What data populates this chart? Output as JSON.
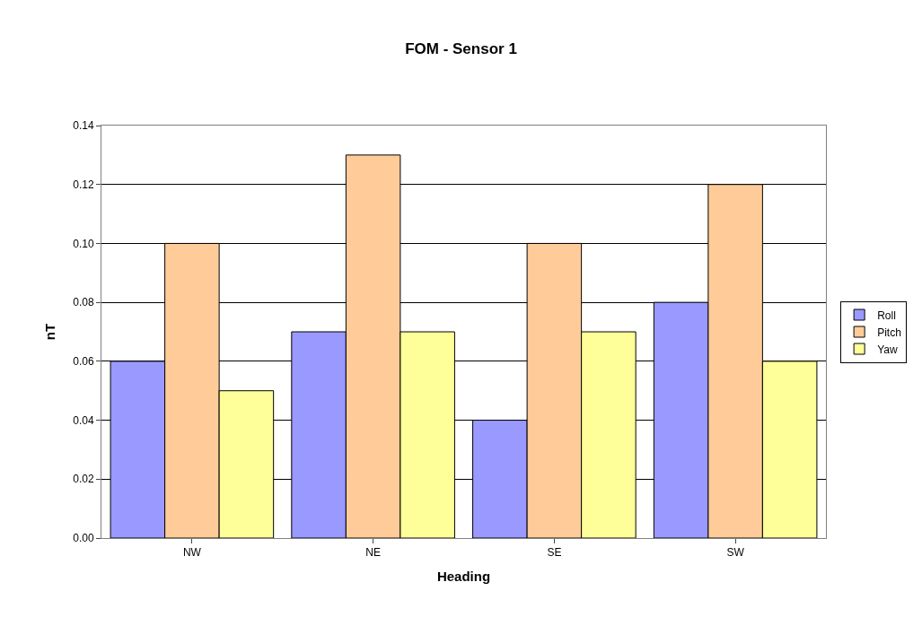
{
  "chart_data": {
    "type": "bar",
    "title": "FOM - Sensor 1",
    "xlabel": "Heading",
    "ylabel": "nT",
    "categories": [
      "NW",
      "NE",
      "SE",
      "SW"
    ],
    "series": [
      {
        "name": "Roll",
        "color": "#9999ff",
        "values": [
          0.06,
          0.07,
          0.04,
          0.08
        ]
      },
      {
        "name": "Pitch",
        "color": "#ffcc99",
        "values": [
          0.1,
          0.13,
          0.1,
          0.12
        ]
      },
      {
        "name": "Yaw",
        "color": "#ffff99",
        "values": [
          0.05,
          0.07,
          0.07,
          0.06
        ]
      }
    ],
    "ylim": [
      0,
      0.14
    ],
    "yticks": [
      {
        "value": 0,
        "label": "0.00"
      },
      {
        "value": 0.02,
        "label": "0.02"
      },
      {
        "value": 0.04,
        "label": "0.04"
      },
      {
        "value": 0.06,
        "label": "0.06"
      },
      {
        "value": 0.08,
        "label": "0.08"
      },
      {
        "value": 0.1,
        "label": "0.10"
      },
      {
        "value": 0.12,
        "label": "0.12"
      },
      {
        "value": 0.14,
        "label": "0.14"
      }
    ],
    "grid": "y",
    "legend": "right"
  }
}
